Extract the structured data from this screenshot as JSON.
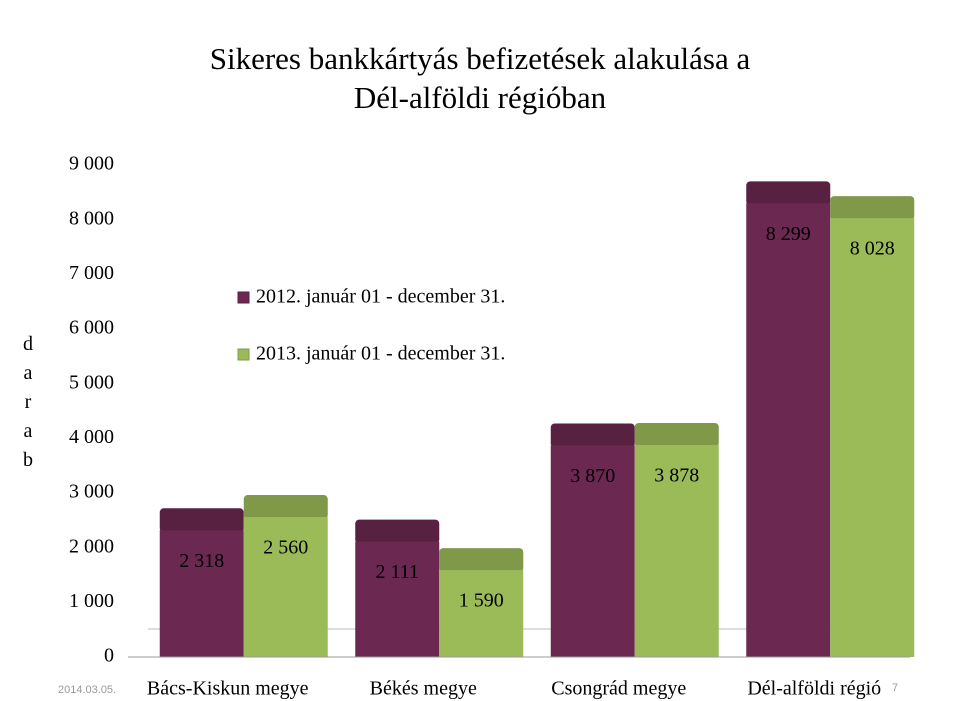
{
  "chart_data": {
    "type": "bar3d",
    "title": [
      "Sikeres bankkártyás befizetések alakulása a",
      "Dél-alföldi régióban"
    ],
    "y_label": "darab",
    "categories": [
      "Bács-Kiskun megye",
      "Békés megye",
      "Csongrád megye",
      "Dél-alföldi régió"
    ],
    "series": [
      {
        "name": "2012. január 01 - december 31.",
        "color": "#6b2850",
        "values": [
          2318,
          2111,
          3870,
          8299
        ],
        "value_labels": [
          "2 318",
          "2 111",
          "3 870",
          "8 299"
        ]
      },
      {
        "name": "2013. január 01 - december 31.",
        "color": "#9bbb59",
        "values": [
          2560,
          1590,
          3878,
          8028
        ],
        "value_labels": [
          "2 560",
          "1 590",
          "3 878",
          "8 028"
        ]
      }
    ],
    "ylim": [
      0,
      9000
    ],
    "yticks": [
      0,
      {
        "value": 1000,
        "label": "1 000"
      },
      {
        "value": 2000,
        "label": "2 000"
      },
      {
        "value": 3000,
        "label": "3 000"
      },
      {
        "value": 4000,
        "label": "4 000"
      },
      {
        "value": 5000,
        "label": "5 000"
      },
      {
        "value": 6000,
        "label": "6 000"
      },
      {
        "value": 7000,
        "label": "7 000"
      },
      {
        "value": 8000,
        "label": "8 000"
      },
      {
        "value": 9000,
        "label": "9 000"
      }
    ],
    "legend": "upper-left"
  },
  "footer": {
    "date": "2014.03.05.",
    "page": "7"
  }
}
